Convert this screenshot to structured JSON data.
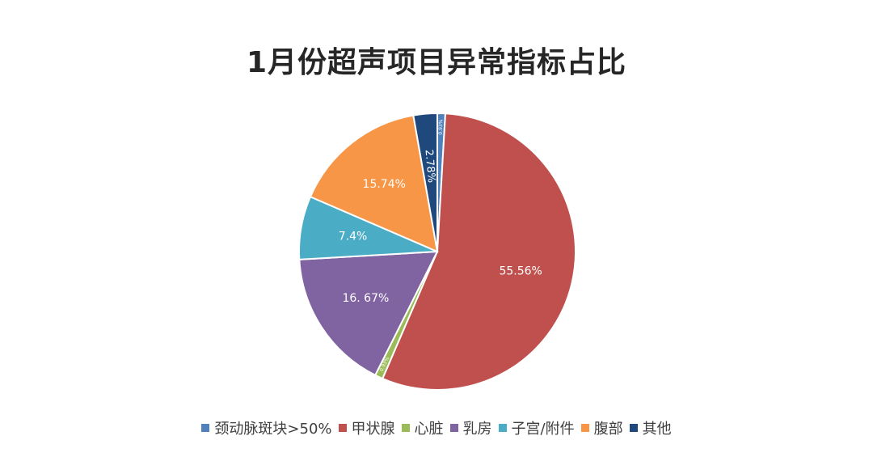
{
  "chart_data": {
    "type": "pie",
    "title": "1月份超声项目异常指标占比",
    "legend_position": "bottom",
    "slices": [
      {
        "label": "颈动脉斑块>50%",
        "value": 0.93,
        "display": "0.93%",
        "color": "#4F81BD"
      },
      {
        "label": "甲状腺",
        "value": 55.56,
        "display": "55.56%",
        "color": "#C0504D"
      },
      {
        "label": "心脏",
        "value": 0.93,
        "display": "0.93%",
        "color": "#9BBB59"
      },
      {
        "label": "乳房",
        "value": 16.67,
        "display": "16. 67%",
        "color": "#8064A2"
      },
      {
        "label": "子宫/附件",
        "value": 7.4,
        "display": "7.4%",
        "color": "#4BACC6"
      },
      {
        "label": "腹部",
        "value": 15.74,
        "display": "15.74%",
        "color": "#F79646"
      },
      {
        "label": "其他",
        "value": 2.78,
        "display": "2.78%",
        "color": "#1F497D"
      }
    ]
  }
}
